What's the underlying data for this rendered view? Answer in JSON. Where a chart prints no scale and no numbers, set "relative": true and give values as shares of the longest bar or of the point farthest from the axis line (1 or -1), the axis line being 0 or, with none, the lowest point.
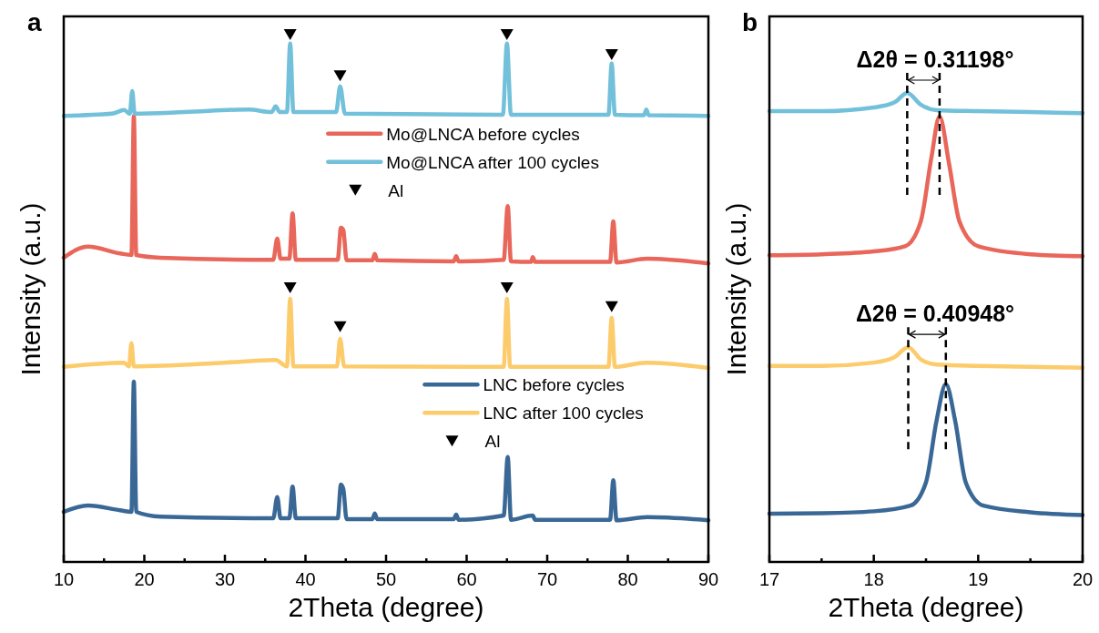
{
  "chart_data": [
    {
      "type": "line",
      "title": "a",
      "xlabel": "2Theta (degree)",
      "ylabel": "Intensity (a.u.)",
      "relative": true,
      "legend": "right",
      "xlim": [
        10,
        90
      ],
      "xticks": [
        10,
        {
          "value": 15,
          "label": null
        },
        20,
        {
          "value": 25,
          "label": null
        },
        30,
        {
          "value": 35,
          "label": null
        },
        40,
        {
          "value": 45,
          "label": null
        },
        50,
        {
          "value": 55,
          "label": null
        },
        60,
        {
          "value": 65,
          "label": null
        },
        70,
        {
          "value": 75,
          "label": null
        },
        80,
        {
          "value": 85,
          "label": null
        },
        90
      ],
      "series": [
        {
          "name": "Mo@LNCA before cycles",
          "color": "#e8665a",
          "x": [
            10,
            13,
            17,
            18.4,
            18.7,
            19.0,
            22,
            36.0,
            36.5,
            36.9,
            38.0,
            38.4,
            38.8,
            44.0,
            44.4,
            44.7,
            45.1,
            48.3,
            48.6,
            48.9,
            58.4,
            58.7,
            59.0,
            64.6,
            65.1,
            65.5,
            68.0,
            68.2,
            68.5,
            77.8,
            78.2,
            78.6,
            82.4,
            90
          ],
          "values": [
            0.577,
            0.598,
            0.585,
            0.582,
            0.846,
            0.582,
            0.577,
            0.573,
            0.613,
            0.575,
            0.575,
            0.661,
            0.573,
            0.573,
            0.634,
            0.629,
            0.572,
            0.572,
            0.584,
            0.572,
            0.57,
            0.58,
            0.57,
            0.573,
            0.675,
            0.57,
            0.569,
            0.578,
            0.569,
            0.569,
            0.646,
            0.568,
            0.575,
            0.566
          ]
        },
        {
          "name": "Mo@LNCA after 100 cycles",
          "color": "#72c0da",
          "x": [
            10,
            16,
            17.5,
            18.2,
            18.5,
            18.8,
            25,
            33,
            35.8,
            36.3,
            36.8,
            37.7,
            38.1,
            38.5,
            43.8,
            44.3,
            44.9,
            64.5,
            65.0,
            65.5,
            77.6,
            78.0,
            78.4,
            82.0,
            82.3,
            82.6,
            90
          ],
          "values": [
            0.846,
            0.85,
            0.857,
            0.85,
            0.893,
            0.85,
            0.853,
            0.858,
            0.853,
            0.864,
            0.853,
            0.853,
            0.983,
            0.853,
            0.853,
            0.902,
            0.85,
            0.848,
            0.983,
            0.848,
            0.848,
            0.945,
            0.848,
            0.847,
            0.858,
            0.847,
            0.846
          ]
        },
        {
          "name": "Al",
          "type": "scatter",
          "marker": "triangle",
          "color": "#000000",
          "x": [
            38.1,
            44.3,
            65.0,
            78.0
          ],
          "values": [
            1.0,
            0.922,
            1.0,
            0.962
          ]
        },
        {
          "name": "LNC before cycles",
          "color": "#3a6896",
          "x": [
            10,
            13,
            17,
            18.4,
            18.7,
            19.0,
            22,
            36.0,
            36.5,
            36.9,
            38.0,
            38.4,
            38.8,
            44.0,
            44.4,
            44.7,
            45.1,
            48.3,
            48.6,
            48.9,
            58.4,
            58.7,
            59.0,
            64.6,
            65.1,
            65.5,
            68.2,
            68.5,
            77.8,
            78.2,
            78.6,
            82.4,
            90
          ],
          "values": [
            0.095,
            0.107,
            0.098,
            0.095,
            0.342,
            0.095,
            0.086,
            0.083,
            0.123,
            0.083,
            0.083,
            0.143,
            0.083,
            0.083,
            0.147,
            0.138,
            0.081,
            0.081,
            0.092,
            0.081,
            0.081,
            0.09,
            0.08,
            0.088,
            0.199,
            0.08,
            0.088,
            0.08,
            0.08,
            0.155,
            0.079,
            0.085,
            0.079
          ]
        },
        {
          "name": "LNC after 100 cycles",
          "color": "#fccb6b",
          "x": [
            10,
            17.5,
            18.1,
            18.4,
            18.7,
            30,
            36.3,
            37.7,
            38.1,
            38.5,
            43.9,
            44.3,
            44.8,
            64.6,
            65.0,
            65.4,
            77.6,
            78.0,
            78.4,
            82.3,
            90
          ],
          "values": [
            0.37,
            0.378,
            0.371,
            0.415,
            0.371,
            0.378,
            0.383,
            0.371,
            0.499,
            0.371,
            0.371,
            0.423,
            0.371,
            0.37,
            0.499,
            0.37,
            0.37,
            0.463,
            0.37,
            0.378,
            0.368
          ]
        },
        {
          "name": "Al",
          "type": "scatter",
          "marker": "triangle",
          "color": "#000000",
          "x": [
            38.1,
            44.3,
            65.0,
            78.0
          ],
          "values": [
            0.52,
            0.446,
            0.52,
            0.484
          ]
        }
      ]
    },
    {
      "type": "line",
      "title": "b",
      "xlabel": "2Theta (degree)",
      "ylabel": "Intensity (a.u.)",
      "relative": true,
      "xlim": [
        17,
        20
      ],
      "xticks": [
        17,
        {
          "value": 17.5,
          "label": null
        },
        18,
        {
          "value": 18.5,
          "label": null
        },
        19,
        {
          "value": 19.5,
          "label": null
        },
        20
      ],
      "annotations": [
        "Δ2θ = 0.31198°",
        "Δ2θ = 0.40948°"
      ],
      "ref_lines": [
        {
          "axis": "x",
          "value": 18.32,
          "color": "#000000",
          "line_style": "dashed"
        },
        {
          "axis": "x",
          "value": 18.63,
          "color": "#000000",
          "line_style": "dashed"
        },
        {
          "axis": "x",
          "value": 18.33,
          "color": "#000000",
          "line_style": "dashed"
        },
        {
          "axis": "x",
          "value": 18.69,
          "color": "#000000",
          "line_style": "dashed"
        }
      ],
      "series": [
        {
          "color": "#72c0da",
          "x": [
            17,
            17.5,
            18.0,
            18.2,
            18.32,
            18.45,
            18.6,
            19.0,
            19.5,
            20
          ],
          "values": [
            0.961,
            0.961,
            0.969,
            0.98,
            1.0,
            0.975,
            0.963,
            0.961,
            0.959,
            0.957
          ]
        },
        {
          "color": "#e8665a",
          "x": [
            17,
            17.5,
            18.0,
            18.3,
            18.45,
            18.55,
            18.63,
            18.72,
            18.82,
            19.0,
            19.5,
            20
          ],
          "values": [
            0.654,
            0.656,
            0.662,
            0.673,
            0.726,
            0.86,
            0.95,
            0.85,
            0.726,
            0.673,
            0.656,
            0.652
          ]
        },
        {
          "color": "#fccb6b",
          "x": [
            17,
            17.5,
            18.0,
            18.2,
            18.33,
            18.45,
            18.6,
            19.0,
            19.5,
            20
          ],
          "values": [
            0.418,
            0.418,
            0.425,
            0.437,
            0.458,
            0.432,
            0.421,
            0.418,
            0.416,
            0.414
          ]
        },
        {
          "color": "#3a6896",
          "x": [
            17,
            17.5,
            18.0,
            18.35,
            18.5,
            18.6,
            18.69,
            18.78,
            18.88,
            19.05,
            19.5,
            20
          ],
          "values": [
            0.103,
            0.104,
            0.108,
            0.12,
            0.17,
            0.3,
            0.379,
            0.3,
            0.17,
            0.12,
            0.106,
            0.1
          ]
        }
      ]
    }
  ]
}
